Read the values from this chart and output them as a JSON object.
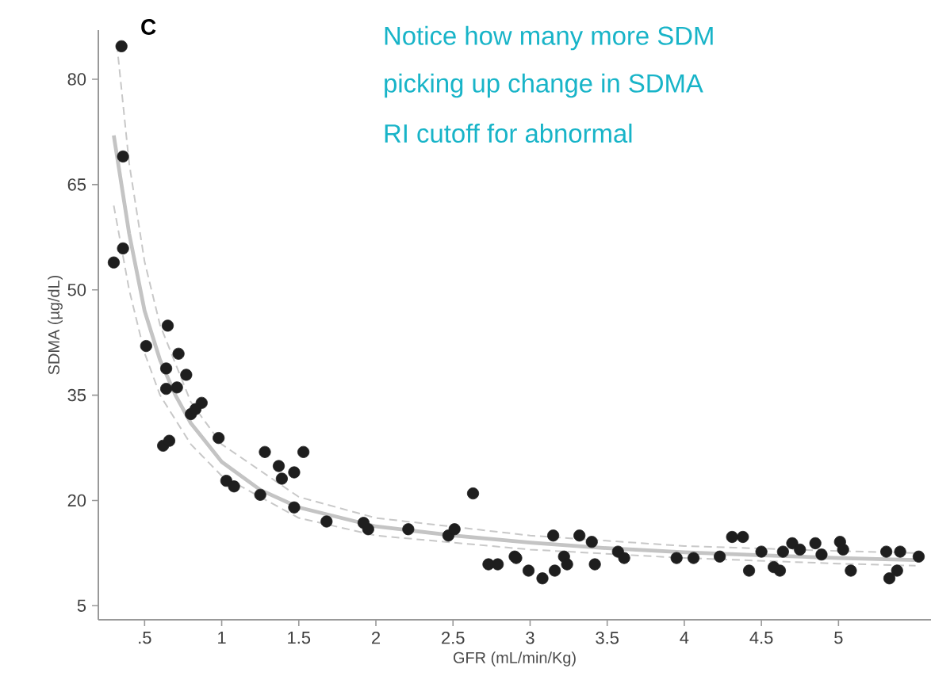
{
  "chart_data": {
    "type": "scatter",
    "xlabel": "GFR (mL/min/Kg)",
    "ylabel": "SDMA (µg/dL)",
    "annotations": [
      "C",
      "Notice how many more SDM",
      "picking up change in SDMA",
      "RI cutoff for abnormal"
    ],
    "xlim": [
      0.2,
      5.6
    ],
    "ylim": [
      3,
      87
    ],
    "xticks": [
      {
        "value": 0.5,
        "label": ".5"
      },
      1,
      1.5,
      2,
      2.5,
      3,
      3.5,
      4,
      4.5,
      5
    ],
    "yticks": [
      5,
      20,
      35,
      50,
      65,
      80
    ],
    "grid": false,
    "series": [
      {
        "type": "line",
        "marker": "none",
        "color": "#c4c4c4",
        "line_style": "solid",
        "x": [
          0.3,
          0.4,
          0.5,
          0.6,
          0.7,
          0.8,
          1,
          1.25,
          1.5,
          2,
          2.5,
          3,
          3.5,
          4,
          4.5,
          5,
          5.5
        ],
        "values": [
          72,
          58,
          47,
          40,
          35,
          31,
          25.5,
          21.5,
          19,
          16.3,
          15,
          14,
          13.2,
          12.6,
          12.2,
          11.8,
          11.5
        ]
      },
      {
        "type": "line",
        "marker": "none",
        "color": "#c8c8c8",
        "line_style": "dashed",
        "x": [
          0.32,
          0.4,
          0.5,
          0.6,
          0.8,
          1,
          1.5,
          2,
          3,
          4,
          5,
          5.5
        ],
        "values": [
          85,
          68,
          54,
          45,
          34,
          28,
          20.5,
          17.5,
          15,
          13.5,
          12.8,
          12.5
        ]
      },
      {
        "type": "line",
        "marker": "none",
        "color": "#c8c8c8",
        "line_style": "dashed",
        "x": [
          0.3,
          0.4,
          0.5,
          0.6,
          0.8,
          1,
          1.5,
          2,
          3,
          4,
          5,
          5.5
        ],
        "values": [
          62,
          50,
          41,
          35,
          28,
          23.5,
          17.5,
          15,
          13,
          11.8,
          11,
          10.7
        ]
      },
      {
        "type": "scatter",
        "marker": "circle",
        "color": "#1e1e1e",
        "x": [
          0.35,
          0.36,
          0.3,
          0.36,
          0.51,
          0.65,
          0.72,
          0.64,
          0.77,
          0.71,
          0.64,
          0.87,
          0.8,
          0.83,
          0.62,
          0.66,
          0.98,
          1.03,
          1.08,
          1.25,
          1.28,
          1.37,
          1.39,
          1.47,
          1.53,
          1.47,
          1.68,
          1.92,
          1.95,
          2.21,
          2.47,
          2.51,
          2.63,
          2.73,
          2.79,
          2.9,
          2.91,
          2.99,
          3.08,
          3.15,
          3.16,
          3.22,
          3.24,
          3.32,
          3.4,
          3.42,
          3.57,
          3.61,
          3.95,
          4.06,
          4.23,
          4.31,
          4.38,
          4.42,
          4.5,
          4.58,
          4.62,
          4.64,
          4.7,
          4.75,
          4.85,
          4.89,
          5.01,
          5.03,
          5.08,
          5.31,
          5.33,
          5.4,
          5.38,
          5.52
        ],
        "values": [
          84.7,
          69,
          53.9,
          55.9,
          42,
          44.9,
          40.9,
          38.8,
          37.9,
          36.1,
          35.9,
          33.9,
          32.3,
          33,
          27.8,
          28.5,
          28.9,
          22.8,
          22,
          20.8,
          26.9,
          24.9,
          23.1,
          24,
          26.9,
          19,
          17,
          16.8,
          15.9,
          15.9,
          15,
          15.9,
          21,
          10.9,
          10.9,
          12,
          11.8,
          10,
          8.9,
          15,
          10,
          12,
          10.9,
          15,
          14.1,
          10.9,
          12.7,
          11.8,
          11.8,
          11.8,
          12,
          14.8,
          14.8,
          10,
          12.7,
          10.5,
          10,
          12.7,
          13.9,
          13,
          13.9,
          12.3,
          14.1,
          13,
          10,
          12.7,
          8.9,
          12.7,
          10,
          12
        ]
      }
    ]
  }
}
